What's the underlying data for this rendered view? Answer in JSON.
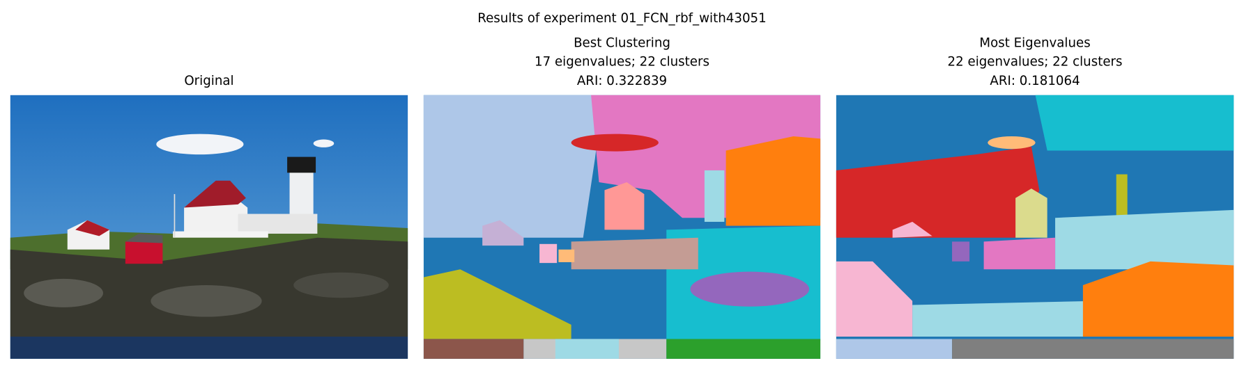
{
  "figure": {
    "title": "Results of experiment 01_FCN_rbf_with43051",
    "panels": [
      {
        "title_lines": [
          "Original"
        ]
      },
      {
        "title_lines": [
          "Best Clustering",
          "17 eigenvalues; 22 clusters",
          "ARI: 0.322839"
        ]
      },
      {
        "title_lines": [
          "Most Eigenvalues",
          "22 eigenvalues; 22 clusters",
          "ARI: 0.181064"
        ]
      }
    ]
  }
}
